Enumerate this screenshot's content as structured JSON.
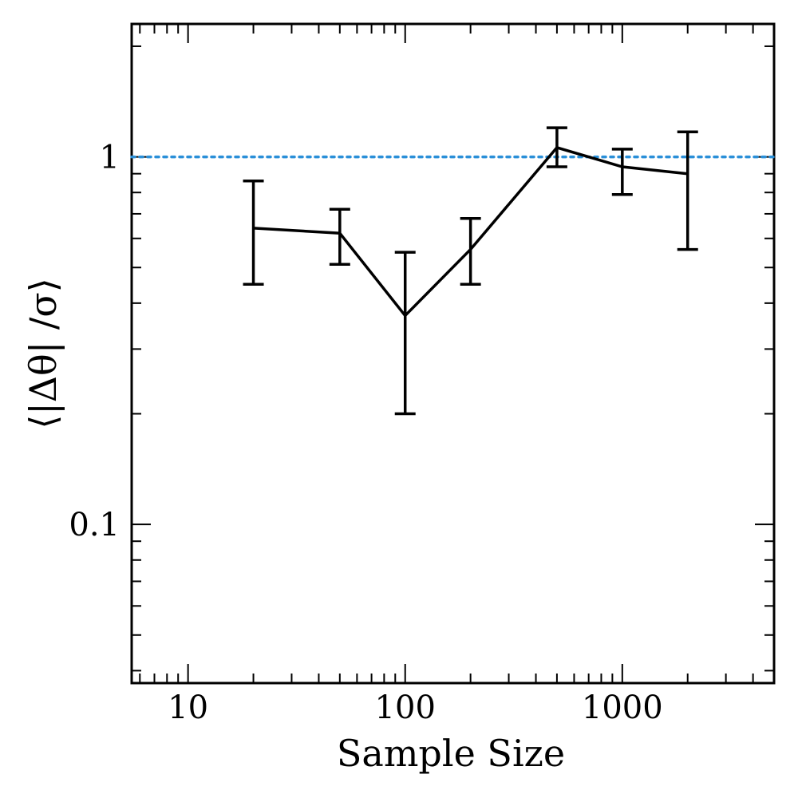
{
  "chart_data": {
    "type": "line",
    "xlabel": "Sample Size",
    "ylabel": "⟨|Δθ| /σ⟩",
    "x_scale": "log",
    "y_scale": "log",
    "xlim": [
      5.5,
      5000
    ],
    "ylim": [
      0.037,
      2.3
    ],
    "x_ticks": [
      10,
      100,
      1000
    ],
    "x_tick_labels": [
      "10",
      "100",
      "1000"
    ],
    "y_ticks": [
      0.1,
      1
    ],
    "y_tick_labels": [
      "0.1",
      "1"
    ],
    "reference_line": {
      "y": 1,
      "style": "dotted",
      "color": "#2a8fd8"
    },
    "series": [
      {
        "x": [
          20,
          50,
          100,
          200,
          500,
          1000,
          2000
        ],
        "y": [
          0.64,
          0.62,
          0.37,
          0.56,
          1.06,
          0.94,
          0.9
        ],
        "yerr_low": [
          0.45,
          0.51,
          0.2,
          0.45,
          0.94,
          0.79,
          0.56
        ],
        "yerr_high": [
          0.86,
          0.72,
          0.55,
          0.68,
          1.2,
          1.05,
          1.17
        ],
        "color": "#000000"
      }
    ],
    "grid": false,
    "legend": "none"
  }
}
